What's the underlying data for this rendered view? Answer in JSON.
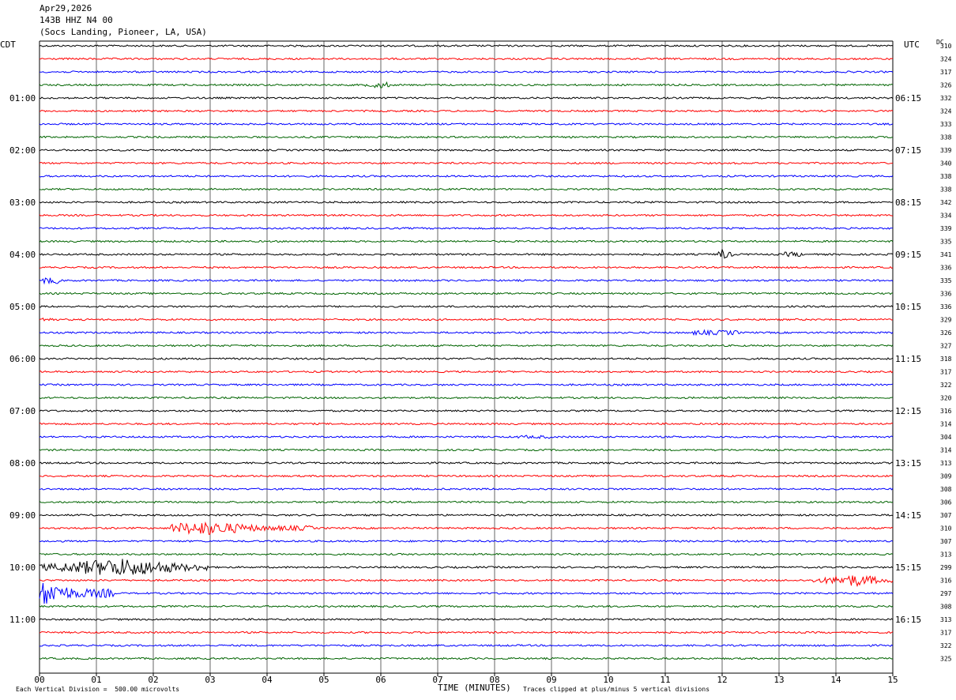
{
  "header": {
    "date": "Apr29,2026",
    "station": "143B HHZ N4 00",
    "location": "(Socs Landing, Pioneer, LA, USA)"
  },
  "left_timezone": "CDT",
  "right_timezone": "UTC",
  "dc_label": "DC",
  "footer": {
    "scale_note": "Each Vertical Division =  500.00 microvolts",
    "xlabel": "TIME (MINUTES)",
    "clip_note": "Traces clipped at plus/minus 5 vertical divisions"
  },
  "chart_data": {
    "type": "line",
    "title": "143B HHZ N4 00",
    "xlabel": "TIME (MINUTES)",
    "xlim": [
      0,
      15
    ],
    "x_ticks": [
      "00",
      "01",
      "02",
      "03",
      "04",
      "05",
      "06",
      "07",
      "08",
      "09",
      "10",
      "11",
      "12",
      "13",
      "14",
      "15"
    ],
    "rows": 48,
    "trace_colors": [
      "#000000",
      "#ff0000",
      "#0000ff",
      "#006400"
    ],
    "left_time_labels": [
      {
        "row": 4,
        "label": "01:00"
      },
      {
        "row": 8,
        "label": "02:00"
      },
      {
        "row": 12,
        "label": "03:00"
      },
      {
        "row": 16,
        "label": "04:00"
      },
      {
        "row": 20,
        "label": "05:00"
      },
      {
        "row": 24,
        "label": "06:00"
      },
      {
        "row": 28,
        "label": "07:00"
      },
      {
        "row": 32,
        "label": "08:00"
      },
      {
        "row": 36,
        "label": "09:00"
      },
      {
        "row": 40,
        "label": "10:00"
      },
      {
        "row": 44,
        "label": "11:00"
      }
    ],
    "right_time_labels": [
      {
        "row": 4,
        "label": "06:15"
      },
      {
        "row": 8,
        "label": "07:15"
      },
      {
        "row": 12,
        "label": "08:15"
      },
      {
        "row": 16,
        "label": "09:15"
      },
      {
        "row": 20,
        "label": "10:15"
      },
      {
        "row": 24,
        "label": "11:15"
      },
      {
        "row": 28,
        "label": "12:15"
      },
      {
        "row": 32,
        "label": "13:15"
      },
      {
        "row": 36,
        "label": "14:15"
      },
      {
        "row": 40,
        "label": "15:15"
      },
      {
        "row": 44,
        "label": "16:15"
      }
    ],
    "dc_offsets": [
      310,
      324,
      317,
      326,
      332,
      324,
      333,
      338,
      339,
      340,
      338,
      338,
      342,
      334,
      339,
      335,
      341,
      336,
      335,
      336,
      336,
      329,
      326,
      327,
      318,
      317,
      322,
      320,
      316,
      314,
      304,
      314,
      313,
      309,
      308,
      306,
      307,
      310,
      307,
      313,
      299,
      316,
      297,
      308,
      313,
      317,
      322,
      325
    ],
    "events": [
      {
        "row": 3,
        "start_min": 5.7,
        "end_min": 6.2,
        "amp": 5,
        "spike_min": 6.0
      },
      {
        "row": 16,
        "start_min": 11.9,
        "end_min": 12.2,
        "amp": 8,
        "spike_min": 12.0
      },
      {
        "row": 16,
        "start_min": 13.1,
        "end_min": 13.4,
        "amp": 3
      },
      {
        "row": 18,
        "start_min": 0.05,
        "end_min": 0.35,
        "amp": 4
      },
      {
        "row": 21,
        "start_min": 0.05,
        "end_min": 0.25,
        "amp": 3
      },
      {
        "row": 22,
        "start_min": 11.5,
        "end_min": 12.3,
        "amp": 3
      },
      {
        "row": 30,
        "start_min": 8.4,
        "end_min": 9.0,
        "amp": 2
      },
      {
        "row": 37,
        "start_min": 2.3,
        "end_min": 4.8,
        "amp": 9,
        "spike_min": 2.9
      },
      {
        "row": 37,
        "start_min": 11.85,
        "end_min": 11.95,
        "amp": 6,
        "spike_min": 11.9
      },
      {
        "row": 40,
        "start_min": 0.0,
        "end_min": 3.0,
        "amp": 12,
        "spike_min": 1.4
      },
      {
        "row": 41,
        "start_min": 13.6,
        "end_min": 15.0,
        "amp": 8,
        "spike_min": 14.3
      },
      {
        "row": 42,
        "start_min": 0.0,
        "end_min": 1.3,
        "amp": 16,
        "spike_min": 0.1
      }
    ]
  }
}
